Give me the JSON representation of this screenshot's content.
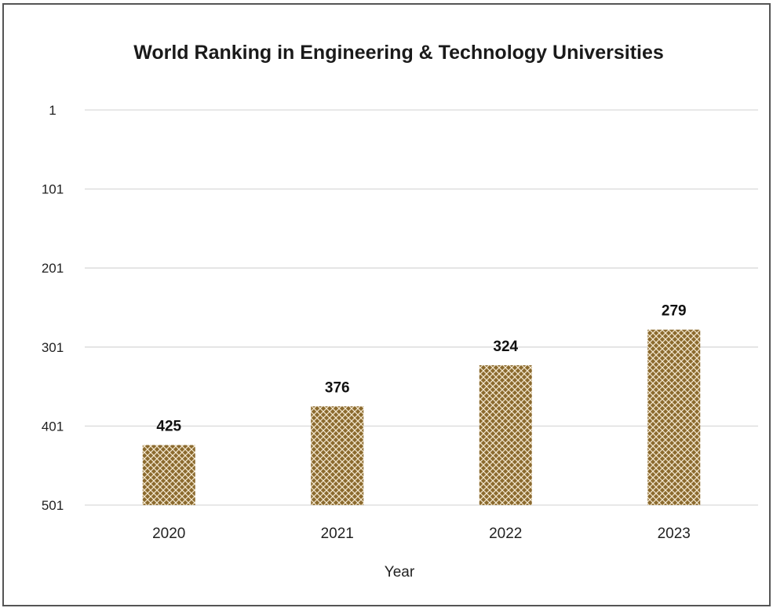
{
  "chart_data": {
    "type": "bar",
    "title": "World Ranking in Engineering & Technology Universities",
    "xlabel": "Year",
    "ylabel": "",
    "categories": [
      "2020",
      "2021",
      "2022",
      "2023"
    ],
    "values": [
      425,
      376,
      324,
      279
    ],
    "data_labels": [
      "425",
      "376",
      "324",
      "279"
    ],
    "y_ticks": [
      1,
      101,
      201,
      301,
      401,
      501
    ],
    "ylim": [
      1,
      501
    ],
    "y_reversed": true,
    "grid": true,
    "legend": "none",
    "colors": {
      "bar_fill": "#8B6A2E",
      "bar_hatch": "#F3E7CF",
      "gridline": "#D9D9D9",
      "frame": "#555555"
    }
  }
}
